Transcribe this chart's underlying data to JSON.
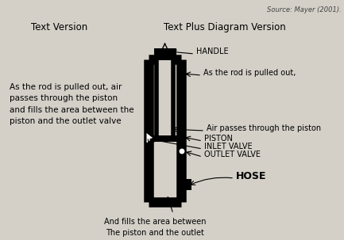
{
  "bg_color": "#d4d0c8",
  "source_text": "Source: Mayer (2001).",
  "title_left": "Text Version",
  "title_right": "Text Plus Diagram Version",
  "text_version_body": "As the rod is pulled out, air\npasses through the piston\nand fills the area between the\npiston and the outlet valve",
  "annotation_handle": "HANDLE",
  "annotation_rod_pulled": "As the rod is pulled out,",
  "annotation_air_piston": "Air passes through the piston",
  "annotation_piston": "PISTON",
  "annotation_inlet": "INLET VALVE",
  "annotation_outlet": "OUTLET VALVE",
  "annotation_hose": "HOSE",
  "annotation_fills": "And fills the area between\nThe piston and the outlet\nvalve",
  "diagram_color": "#000000"
}
